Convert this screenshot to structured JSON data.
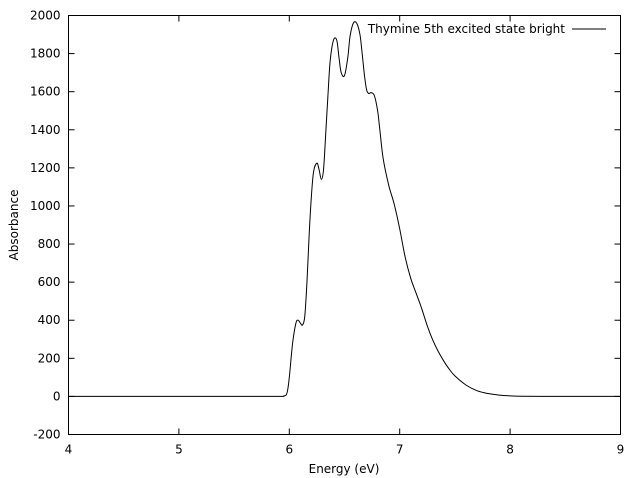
{
  "chart_data": {
    "type": "line",
    "xlabel": "Energy (eV)",
    "ylabel": "Absorbance",
    "xlim": [
      4,
      9
    ],
    "ylim": [
      -200,
      2000
    ],
    "xticks": [
      4,
      5,
      6,
      7,
      8,
      9
    ],
    "yticks": [
      -200,
      0,
      200,
      400,
      600,
      800,
      1000,
      1200,
      1400,
      1600,
      1800,
      2000
    ],
    "grid": false,
    "legend_position": "top-right",
    "series": [
      {
        "name": "Thymine 5th excited state bright",
        "color": "#000000",
        "x": [
          4.0,
          5.0,
          5.85,
          5.95,
          5.98,
          6.0,
          6.03,
          6.06,
          6.08,
          6.1,
          6.12,
          6.14,
          6.16,
          6.18,
          6.2,
          6.22,
          6.25,
          6.27,
          6.29,
          6.31,
          6.33,
          6.35,
          6.37,
          6.4,
          6.43,
          6.45,
          6.47,
          6.5,
          6.53,
          6.55,
          6.58,
          6.61,
          6.64,
          6.66,
          6.68,
          6.7,
          6.72,
          6.74,
          6.77,
          6.8,
          6.82,
          6.85,
          6.9,
          6.95,
          7.0,
          7.05,
          7.1,
          7.15,
          7.2,
          7.25,
          7.3,
          7.35,
          7.4,
          7.45,
          7.5,
          7.6,
          7.7,
          7.8,
          7.9,
          8.0,
          8.1,
          8.3,
          8.6,
          9.0
        ],
        "y": [
          0,
          0,
          0,
          2,
          20,
          100,
          280,
          385,
          400,
          385,
          375,
          420,
          600,
          850,
          1050,
          1180,
          1225,
          1190,
          1140,
          1190,
          1380,
          1580,
          1760,
          1870,
          1870,
          1780,
          1700,
          1685,
          1780,
          1890,
          1960,
          1960,
          1900,
          1800,
          1690,
          1610,
          1590,
          1595,
          1580,
          1500,
          1400,
          1250,
          1110,
          1010,
          880,
          730,
          620,
          540,
          460,
          370,
          295,
          235,
          185,
          142,
          108,
          60,
          30,
          15,
          7,
          3,
          1,
          0,
          0,
          0
        ]
      }
    ]
  }
}
